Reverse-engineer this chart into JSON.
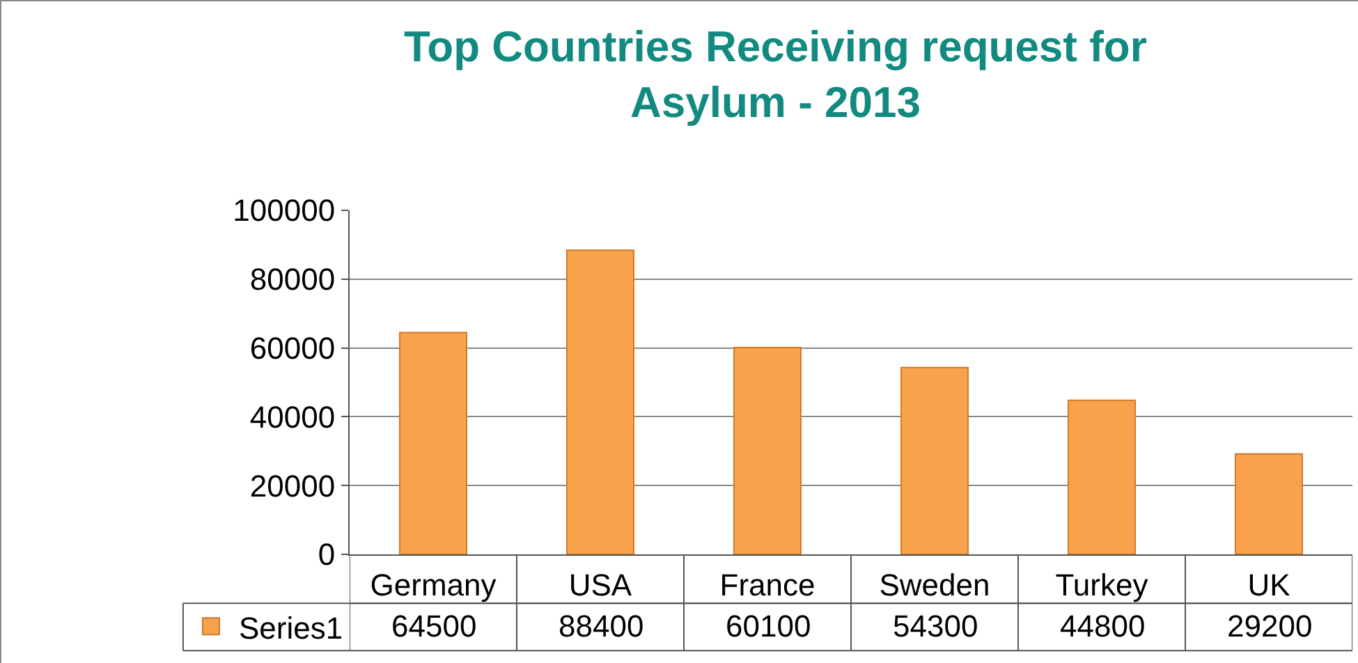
{
  "chart_data": {
    "type": "bar",
    "title": "Top Countries Receiving request for Asylum - 2013",
    "categories": [
      "Germany",
      "USA",
      "France",
      "Sweden",
      "Turkey",
      "UK"
    ],
    "series": [
      {
        "name": "Series1",
        "color": "#f9a24c",
        "values": [
          64500,
          88400,
          60100,
          54300,
          44800,
          29200
        ]
      }
    ],
    "ylim": [
      0,
      100000
    ],
    "yticks": [
      0,
      20000,
      40000,
      60000,
      80000,
      100000
    ],
    "grid": "y",
    "data_labels": true,
    "legend": "bottom left"
  }
}
